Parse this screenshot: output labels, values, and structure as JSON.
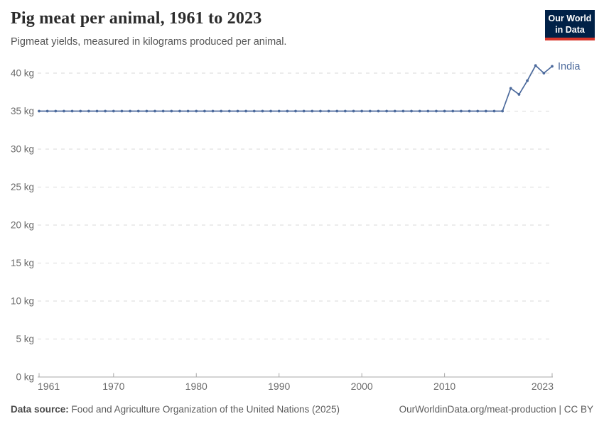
{
  "header": {
    "title": "Pig meat per animal, 1961 to 2023",
    "subtitle": "Pigmeat yields, measured in kilograms produced per animal.",
    "logo": {
      "line1": "Our World",
      "line2": "in Data"
    }
  },
  "colors": {
    "series_blue": "#4C6A9C",
    "logo_navy": "#002147",
    "logo_red": "#D8352A",
    "grid_gray": "#dadada",
    "axis_gray": "#a8a8a8",
    "tick_label_gray": "#6b6b6b"
  },
  "chart_data": {
    "type": "line",
    "title": "Pig meat per animal, 1961 to 2023",
    "xlabel": "",
    "ylabel": "",
    "grid": true,
    "legend_position": "end-of-line label",
    "xlim": [
      1961,
      2023
    ],
    "ylim": [
      0,
      40
    ],
    "x_ticks": [
      1961,
      1970,
      1980,
      1990,
      2000,
      2010,
      2023
    ],
    "y_ticks": [
      0,
      5,
      10,
      15,
      20,
      25,
      30,
      35,
      40
    ],
    "y_tick_suffix": " kg",
    "series": [
      {
        "name": "India",
        "color": "#4C6A9C",
        "x": [
          1961,
          1962,
          1963,
          1964,
          1965,
          1966,
          1967,
          1968,
          1969,
          1970,
          1971,
          1972,
          1973,
          1974,
          1975,
          1976,
          1977,
          1978,
          1979,
          1980,
          1981,
          1982,
          1983,
          1984,
          1985,
          1986,
          1987,
          1988,
          1989,
          1990,
          1991,
          1992,
          1993,
          1994,
          1995,
          1996,
          1997,
          1998,
          1999,
          2000,
          2001,
          2002,
          2003,
          2004,
          2005,
          2006,
          2007,
          2008,
          2009,
          2010,
          2011,
          2012,
          2013,
          2014,
          2015,
          2016,
          2017,
          2018,
          2019,
          2020,
          2021,
          2022,
          2023
        ],
        "values": [
          35,
          35,
          35,
          35,
          35,
          35,
          35,
          35,
          35,
          35,
          35,
          35,
          35,
          35,
          35,
          35,
          35,
          35,
          35,
          35,
          35,
          35,
          35,
          35,
          35,
          35,
          35,
          35,
          35,
          35,
          35,
          35,
          35,
          35,
          35,
          35,
          35,
          35,
          35,
          35,
          35,
          35,
          35,
          35,
          35,
          35,
          35,
          35,
          35,
          35,
          35,
          35,
          35,
          35,
          35,
          35,
          35,
          38,
          37.2,
          39,
          41,
          40,
          40.9
        ]
      }
    ]
  },
  "footer": {
    "source_label": "Data source:",
    "source_text": " Food and Agriculture Organization of the United Nations (2025)",
    "link_text": "OurWorldinData.org/meat-production | CC BY"
  }
}
